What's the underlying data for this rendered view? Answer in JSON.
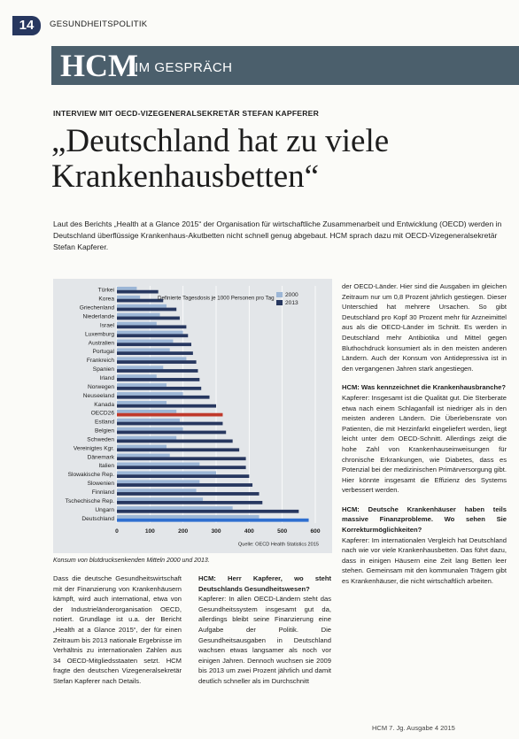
{
  "header": {
    "page_number": "14",
    "section": "GESUNDHEITSPOLITIK"
  },
  "banner": {
    "brand": "HCM",
    "label": "IM GESPRÄCH"
  },
  "article": {
    "kicker": "INTERVIEW MIT OECD-VIZEGENERALSEKRETÄR STEFAN KAPFERER",
    "headline": "„Deutschland hat zu viele Krankenhausbetten“",
    "lead": "Laut des Berichts „Health at a Glance 2015“ der Organisation für wirtschaftliche Zusammenarbeit und Entwicklung (OECD) werden in Deutschland überflüssige Krankenhaus-Akutbetten nicht schnell genug abgebaut. HCM sprach dazu mit OECD-Vizegeneralsekretär Stefan Kapferer.",
    "caption": "Konsum von blutdrucksenkenden Mitteln 2000 und 2013.",
    "left_column": [
      {
        "p": "Dass die deutsche Gesundheitswirtschaft mit der Finanzierung von Krankenhäusern kämpft, wird auch international, etwa von der Industrieländerorganisation OECD, notiert. Grundlage ist u.a. der Bericht „Health at a Glance 2015“, der für einen Zeitraum bis 2013 nationale Ergebnisse im Verhältnis zu internationalen Zahlen aus 34 OECD-Mitgliedsstaaten setzt. HCM fragte den deutschen Vizegeneralsekretär Stefan Kapferer nach Details."
      }
    ],
    "middle_column": [
      {
        "q": "HCM: Herr Kapferer, wo steht Deutschlands Gesundheitswesen?"
      },
      {
        "p": "Kapferer: In allen OECD-Ländern steht das Gesundheitssystem insgesamt gut da, allerdings bleibt seine Finanzierung eine Aufgabe der Politik. Die Gesundheitsausgaben in Deutschland wachsen etwas langsamer als noch vor einigen Jahren. Dennoch wuchsen sie 2009 bis 2013 um zwei Prozent jährlich und damit deutlich schneller als im Durchschnitt"
      }
    ],
    "right_column": [
      {
        "p": "der OECD-Länder. Hier sind die Ausgaben im gleichen Zeitraum nur um 0,8 Prozent jährlich gestiegen. Dieser Unterschied hat mehrere Ursachen. So gibt Deutschland pro Kopf 30 Prozent mehr für Arzneimittel aus als die OECD-Länder im Schnitt. Es werden in Deutschland mehr Antibiotika und Mittel gegen Bluthochdruck konsumiert als in den meisten anderen Ländern. Auch der Konsum von Antidepressiva ist in den vergangenen Jahren stark angestiegen."
      },
      {
        "q": "HCM: Was kennzeichnet die Krankenhausbranche?"
      },
      {
        "p": "Kapferer: Insgesamt ist die Qualität gut. Die Sterberate etwa nach einem Schlaganfall ist niedriger als in den meisten anderen Ländern. Die Überlebensrate von Patienten, die mit Herzinfarkt eingeliefert werden, liegt leicht unter dem OECD-Schnitt. Allerdings zeigt die hohe Zahl von Krankenhauseinweisungen für chronische Erkrankungen, wie Diabetes, dass es Potenzial bei der medizinischen Primärversorgung gibt. Hier könnte insgesamt die Effizienz des Systems verbessert werden."
      },
      {
        "q": "HCM: Deutsche Krankenhäuser haben teils massive Finanzprobleme. Wo sehen Sie Korrekturmöglichkeiten?"
      },
      {
        "p": "Kapferer: Im internationalen Vergleich hat Deutschland nach wie vor viele Krankenhausbetten. Das führt dazu, dass in einigen Häusern eine Zeit lang Betten leer stehen. Gemeinsam mit den kommunalen Trägern gibt es Krankenhäuser, die nicht wirtschaftlich arbeiten."
      }
    ]
  },
  "chart_data": {
    "type": "bar",
    "orientation": "horizontal",
    "annotation": "Definierte Tagesdosis je 1000 Personen pro Tag",
    "source": "Quelle: OECD Health Statistics 2015",
    "categories": [
      "Türkei",
      "Korea",
      "Griechenland",
      "Niederlande",
      "Israel",
      "Luxemburg",
      "Australien",
      "Portugal",
      "Frankreich",
      "Spanien",
      "Irland",
      "Norwegen",
      "Neuseeland",
      "Kanada",
      "OECD26",
      "Estland",
      "Belgien",
      "Schweden",
      "Vereinigtes Kgr.",
      "Dänemark",
      "Italien",
      "Slowakische Rep.",
      "Slowenien",
      "Finnland",
      "Tschechische Rep.",
      "Ungarn",
      "Deutschland"
    ],
    "series": [
      {
        "name": "2000",
        "color": "#9cb6d6",
        "values": [
          60,
          70,
          150,
          130,
          120,
          200,
          170,
          160,
          210,
          140,
          120,
          150,
          200,
          150,
          180,
          190,
          200,
          180,
          150,
          160,
          250,
          300,
          250,
          240,
          260,
          350,
          430
        ]
      },
      {
        "name": "2013",
        "color": "#27375f",
        "values": [
          125,
          140,
          180,
          190,
          210,
          215,
          225,
          230,
          240,
          245,
          250,
          255,
          280,
          300,
          320,
          320,
          330,
          350,
          370,
          390,
          390,
          400,
          410,
          430,
          440,
          550,
          580
        ]
      }
    ],
    "highlight_colors": {
      "OECD26": "#c0392b",
      "Deutschland": "#2f6fd0"
    },
    "xlim": [
      0,
      600
    ],
    "xticks": [
      0,
      100,
      200,
      300,
      400,
      500,
      600
    ],
    "grid": true
  },
  "footer": "HCM 7. Jg. Ausgabe 4 2015"
}
